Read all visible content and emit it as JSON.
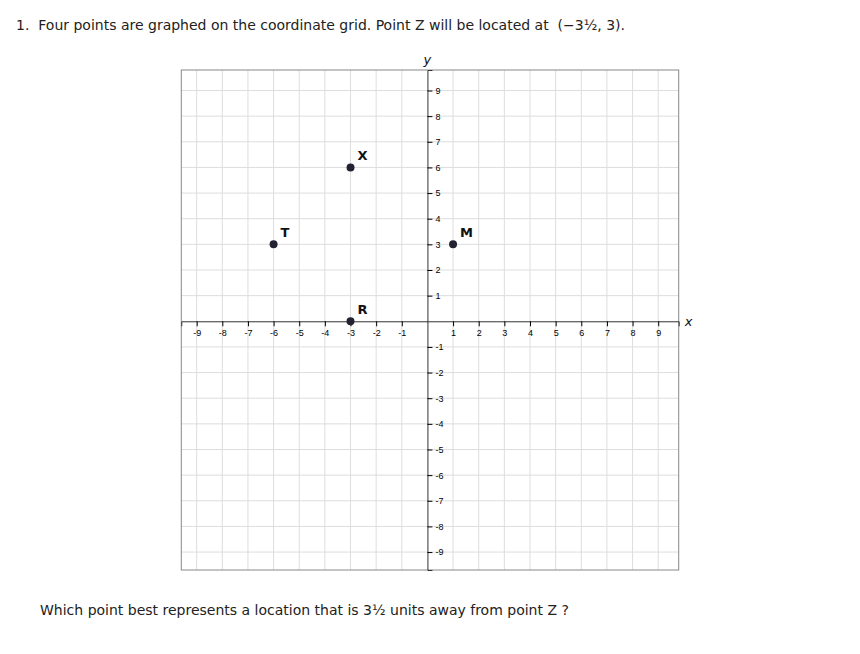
{
  "chart_data": {
    "type": "scatter",
    "title": "1.  Four points are graphed on the coordinate grid. Point Z will be located at  (−3½, 3).",
    "annotations": [
      "Which point best represents a location that is 3½ units away from point Z ?"
    ],
    "x_label": "x",
    "y_label": "y",
    "x": [
      -3,
      -6,
      1,
      -3
    ],
    "values": [
      6,
      3,
      3,
      0
    ],
    "point_labels": [
      "X",
      "T",
      "M",
      "R"
    ],
    "color": "#222233",
    "marker": "circle",
    "xlim": [
      -9.6,
      9.8
    ],
    "ylim": [
      -9.7,
      9.8
    ],
    "xticks": [
      -9,
      -8,
      -7,
      -6,
      -5,
      -4,
      -3,
      -2,
      -1,
      1,
      2,
      3,
      4,
      5,
      6,
      7,
      8,
      9
    ],
    "yticks": [
      -9,
      -8,
      -7,
      -6,
      -5,
      -4,
      -3,
      -2,
      -1,
      1,
      2,
      3,
      4,
      5,
      6,
      7,
      8,
      9
    ],
    "grid": true
  }
}
